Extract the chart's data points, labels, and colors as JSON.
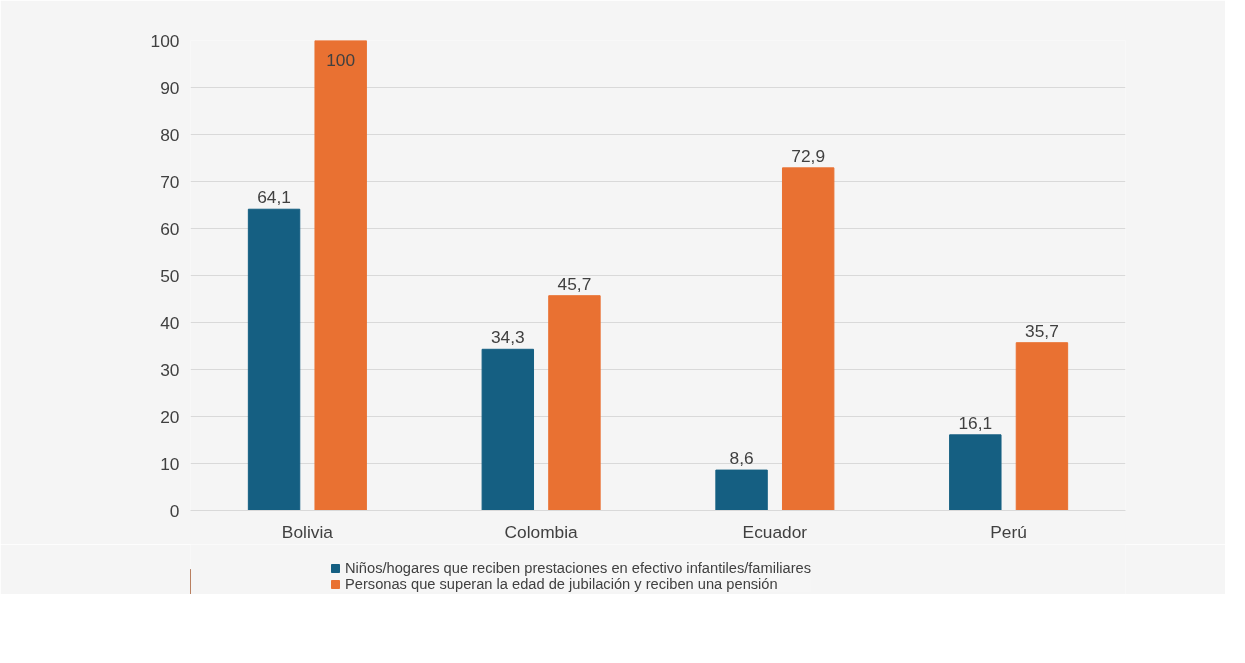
{
  "chart_data": {
    "type": "bar",
    "categories": [
      "Bolivia",
      "Colombia",
      "Ecuador",
      "Perú"
    ],
    "series": [
      {
        "name": "Niños/hogares que reciben prestaciones en efectivo infantiles/familiares",
        "color": "#155f82",
        "values": [
          64.1,
          34.3,
          8.6,
          16.1
        ],
        "value_labels": [
          "64,1",
          "34,3",
          "8,6",
          "16,1"
        ]
      },
      {
        "name": "Personas que superan la edad de jubilación y reciben una pensión",
        "color": "#e97132",
        "values": [
          100,
          45.7,
          72.9,
          35.7
        ],
        "value_labels": [
          "100",
          "45,7",
          "72,9",
          "35,7"
        ]
      }
    ],
    "ylim": [
      0,
      100
    ],
    "yticks": [
      0,
      10,
      20,
      30,
      40,
      50,
      60,
      70,
      80,
      90,
      100
    ],
    "grid": "y",
    "legend": "bottom"
  }
}
